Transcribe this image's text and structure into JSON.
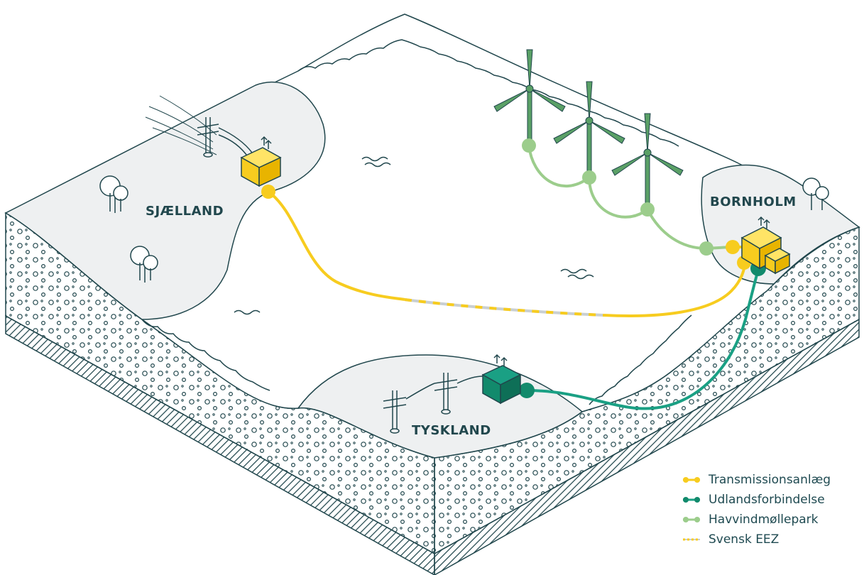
{
  "regions": {
    "sjaelland": "SJÆLLAND",
    "bornholm": "BORNHOLM",
    "tyskland": "TYSKLAND"
  },
  "legend": [
    {
      "label": "Transmissionsanlæg",
      "color": "#f7cc1f",
      "style": "solid"
    },
    {
      "label": "Udlandsforbindelse",
      "color": "#1aa084",
      "style": "solid"
    },
    {
      "label": "Havvindmøllepark",
      "color": "#9ccd8c",
      "style": "solid"
    },
    {
      "label": "Svensk EEZ",
      "color": "#f7cc1f",
      "style": "dashed"
    }
  ],
  "colors": {
    "outline": "#21474d",
    "land": "#eef0f1",
    "sea": "#ffffff",
    "turbine": "#5aa066",
    "substation_yellow": "#f7cc1f",
    "substation_green": "#128a6c"
  }
}
